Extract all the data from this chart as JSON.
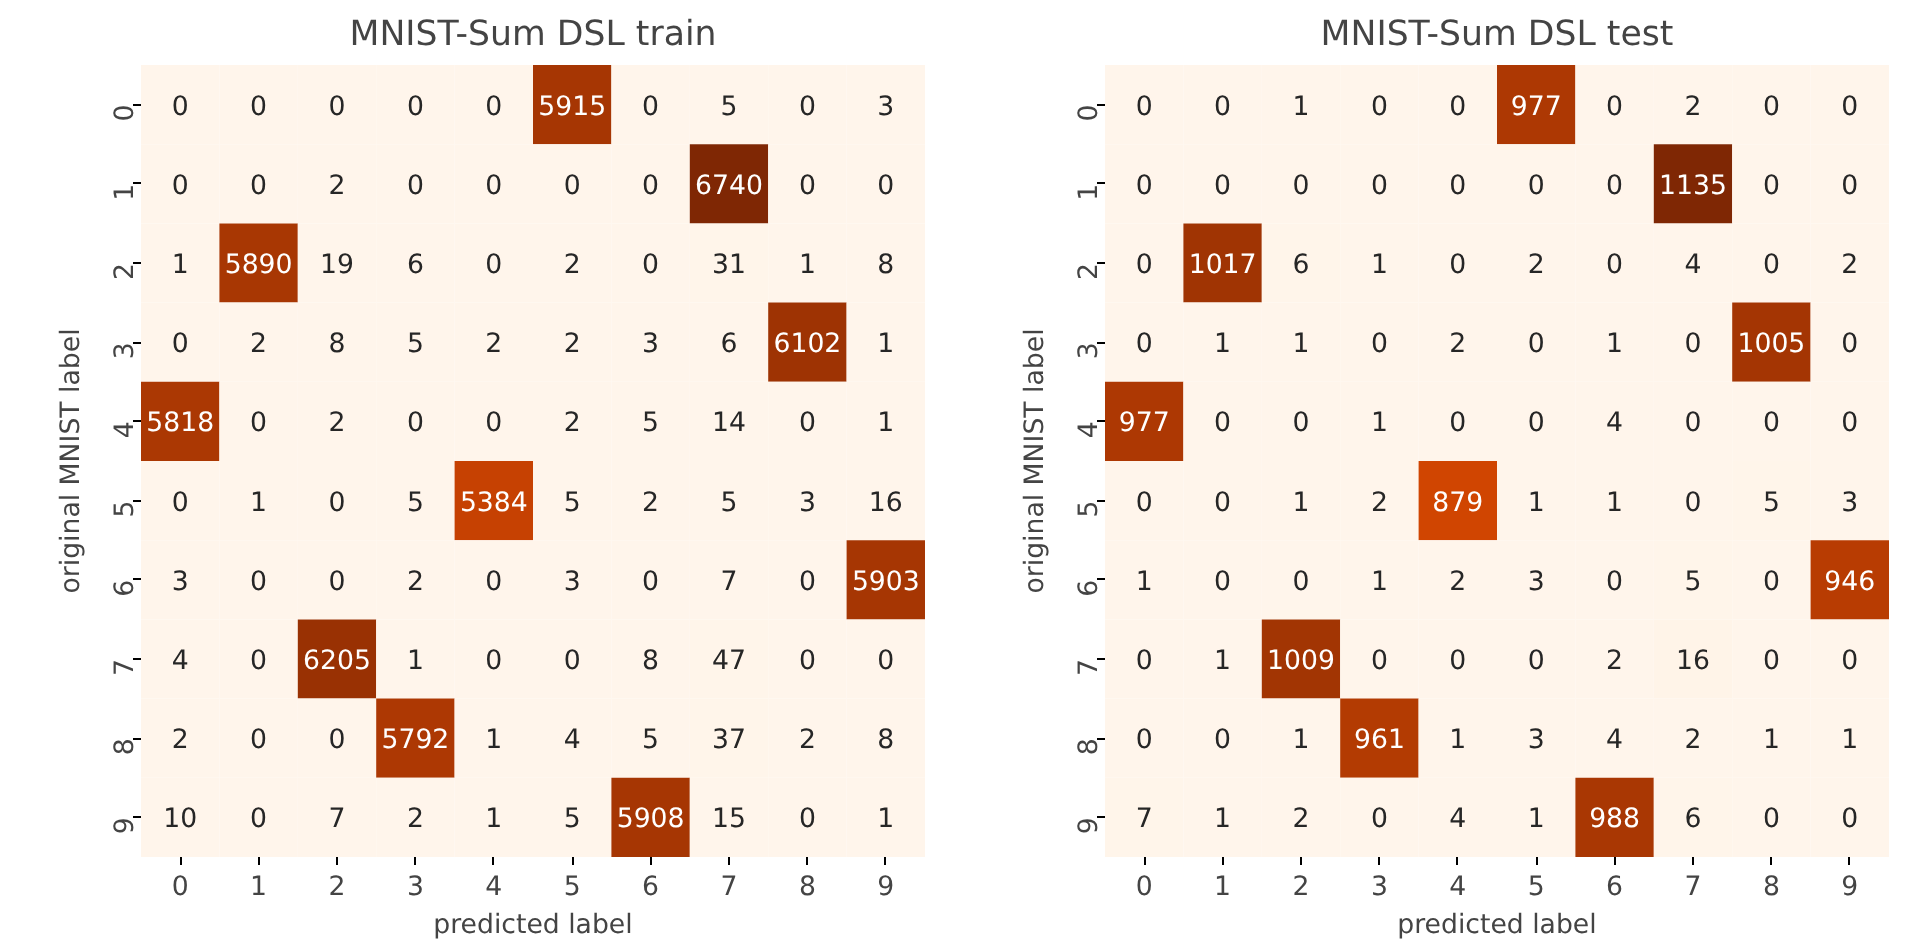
{
  "chart_data": [
    {
      "type": "heatmap",
      "title": "MNIST-Sum DSL train",
      "xlabel": "predicted label",
      "ylabel": "original MNIST label",
      "categories": [
        "0",
        "1",
        "2",
        "3",
        "4",
        "5",
        "6",
        "7",
        "8",
        "9"
      ],
      "y_categories": [
        "0",
        "1",
        "2",
        "3",
        "4",
        "5",
        "6",
        "7",
        "8",
        "9"
      ],
      "cells": [
        [
          0,
          0,
          0,
          0,
          0,
          5915,
          0,
          5,
          0,
          3
        ],
        [
          0,
          0,
          2,
          0,
          0,
          0,
          0,
          6740,
          0,
          0
        ],
        [
          1,
          5890,
          19,
          6,
          0,
          2,
          0,
          31,
          1,
          8
        ],
        [
          0,
          2,
          8,
          5,
          2,
          2,
          3,
          6,
          6102,
          1
        ],
        [
          5818,
          0,
          2,
          0,
          0,
          2,
          5,
          14,
          0,
          1
        ],
        [
          0,
          1,
          0,
          5,
          5384,
          5,
          2,
          5,
          3,
          16
        ],
        [
          3,
          0,
          0,
          2,
          0,
          3,
          0,
          7,
          0,
          5903
        ],
        [
          4,
          0,
          6205,
          1,
          0,
          0,
          8,
          47,
          0,
          0
        ],
        [
          2,
          0,
          0,
          5792,
          1,
          4,
          5,
          37,
          2,
          8
        ],
        [
          10,
          0,
          7,
          2,
          1,
          5,
          5908,
          15,
          0,
          1
        ]
      ],
      "data_labels": true,
      "grid": false
    },
    {
      "type": "heatmap",
      "title": "MNIST-Sum DSL test",
      "xlabel": "predicted label",
      "ylabel": "original MNIST label",
      "categories": [
        "0",
        "1",
        "2",
        "3",
        "4",
        "5",
        "6",
        "7",
        "8",
        "9"
      ],
      "y_categories": [
        "0",
        "1",
        "2",
        "3",
        "4",
        "5",
        "6",
        "7",
        "8",
        "9"
      ],
      "cells": [
        [
          0,
          0,
          1,
          0,
          0,
          977,
          0,
          2,
          0,
          0
        ],
        [
          0,
          0,
          0,
          0,
          0,
          0,
          0,
          1135,
          0,
          0
        ],
        [
          0,
          1017,
          6,
          1,
          0,
          2,
          0,
          4,
          0,
          2
        ],
        [
          0,
          1,
          1,
          0,
          2,
          0,
          1,
          0,
          1005,
          0
        ],
        [
          977,
          0,
          0,
          1,
          0,
          0,
          4,
          0,
          0,
          0
        ],
        [
          0,
          0,
          1,
          2,
          879,
          1,
          1,
          0,
          5,
          3
        ],
        [
          1,
          0,
          0,
          1,
          2,
          3,
          0,
          5,
          0,
          946
        ],
        [
          0,
          1,
          1009,
          0,
          0,
          0,
          2,
          16,
          0,
          0
        ],
        [
          0,
          0,
          1,
          961,
          1,
          3,
          4,
          2,
          1,
          1
        ],
        [
          7,
          1,
          2,
          0,
          4,
          1,
          988,
          6,
          0,
          0
        ]
      ],
      "data_labels": true,
      "grid": false
    }
  ]
}
